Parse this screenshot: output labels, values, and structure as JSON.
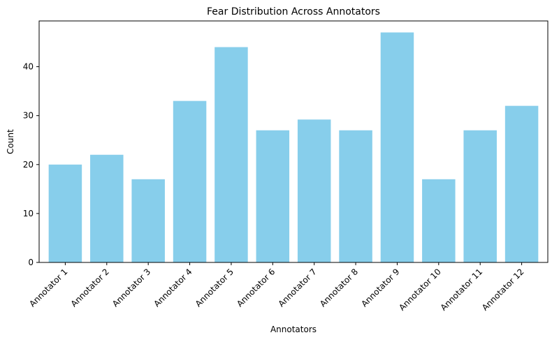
{
  "chart_data": {
    "type": "bar",
    "title": "Fear Distribution Across Annotators",
    "xlabel": "Annotators",
    "ylabel": "Count",
    "categories": [
      "Annotator 1",
      "Annotator 2",
      "Annotator 3",
      "Annotator 4",
      "Annotator 5",
      "Annotator 6",
      "Annotator 7",
      "Annotator 8",
      "Annotator 9",
      "Annotator 10",
      "Annotator 11",
      "Annotator 12"
    ],
    "values": [
      20,
      22,
      17,
      33,
      44,
      27,
      29.2,
      27,
      47,
      17,
      27,
      32
    ],
    "ylim": [
      0,
      49.35
    ],
    "yticks": [
      0,
      10,
      20,
      30,
      40
    ],
    "bar_color": "#87CEEB",
    "grid": false,
    "legend": "none"
  }
}
